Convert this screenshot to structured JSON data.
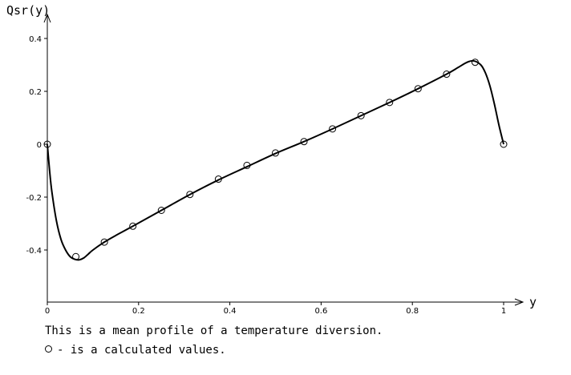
{
  "chart_data": {
    "type": "line",
    "ylabel": "Qsr(y)",
    "xlabel": "y",
    "xlim": [
      0,
      1
    ],
    "ylim": [
      -0.6,
      0.46
    ],
    "x_ticks": [
      0,
      0.2,
      0.4,
      0.6,
      0.8,
      1
    ],
    "x_tick_labels": [
      "0",
      "0.2",
      "0.4",
      "0.6",
      "0.8",
      "1"
    ],
    "y_ticks": [
      -0.4,
      -0.2,
      0,
      0.2,
      0.4
    ],
    "y_tick_labels": [
      "-0.4",
      "-0.2",
      "0",
      "0.2",
      "0.4"
    ],
    "grid": false,
    "series": [
      {
        "kind": "curve",
        "x": [
          0,
          0.005,
          0.01,
          0.02,
          0.03,
          0.04,
          0.05,
          0.06,
          0.07,
          0.08,
          0.09,
          0.1,
          0.125,
          0.15,
          0.1875,
          0.25,
          0.3125,
          0.375,
          0.4375,
          0.5,
          0.5625,
          0.625,
          0.6875,
          0.75,
          0.8125,
          0.875,
          0.9,
          0.92,
          0.935,
          0.95,
          0.96,
          0.97,
          0.98,
          0.99,
          1.0
        ],
        "y": [
          0,
          -0.1,
          -0.18,
          -0.29,
          -0.36,
          -0.4,
          -0.425,
          -0.435,
          -0.437,
          -0.43,
          -0.415,
          -0.4,
          -0.37,
          -0.345,
          -0.31,
          -0.25,
          -0.19,
          -0.135,
          -0.085,
          -0.035,
          0.01,
          0.058,
          0.108,
          0.158,
          0.21,
          0.265,
          0.29,
          0.31,
          0.315,
          0.3,
          0.27,
          0.22,
          0.15,
          0.07,
          0
        ]
      },
      {
        "kind": "markers",
        "x": [
          0,
          0.0625,
          0.125,
          0.1875,
          0.25,
          0.3125,
          0.375,
          0.4375,
          0.5,
          0.5625,
          0.625,
          0.6875,
          0.75,
          0.8125,
          0.875,
          0.9375,
          1
        ],
        "y": [
          0,
          -0.425,
          -0.37,
          -0.31,
          -0.25,
          -0.19,
          -0.132,
          -0.08,
          -0.033,
          0.01,
          0.058,
          0.108,
          0.158,
          0.21,
          0.265,
          0.31,
          0
        ]
      }
    ],
    "caption_line_1": "This is a mean profile of a temperature diversion.",
    "caption_line_2": "- is a calculated values."
  }
}
